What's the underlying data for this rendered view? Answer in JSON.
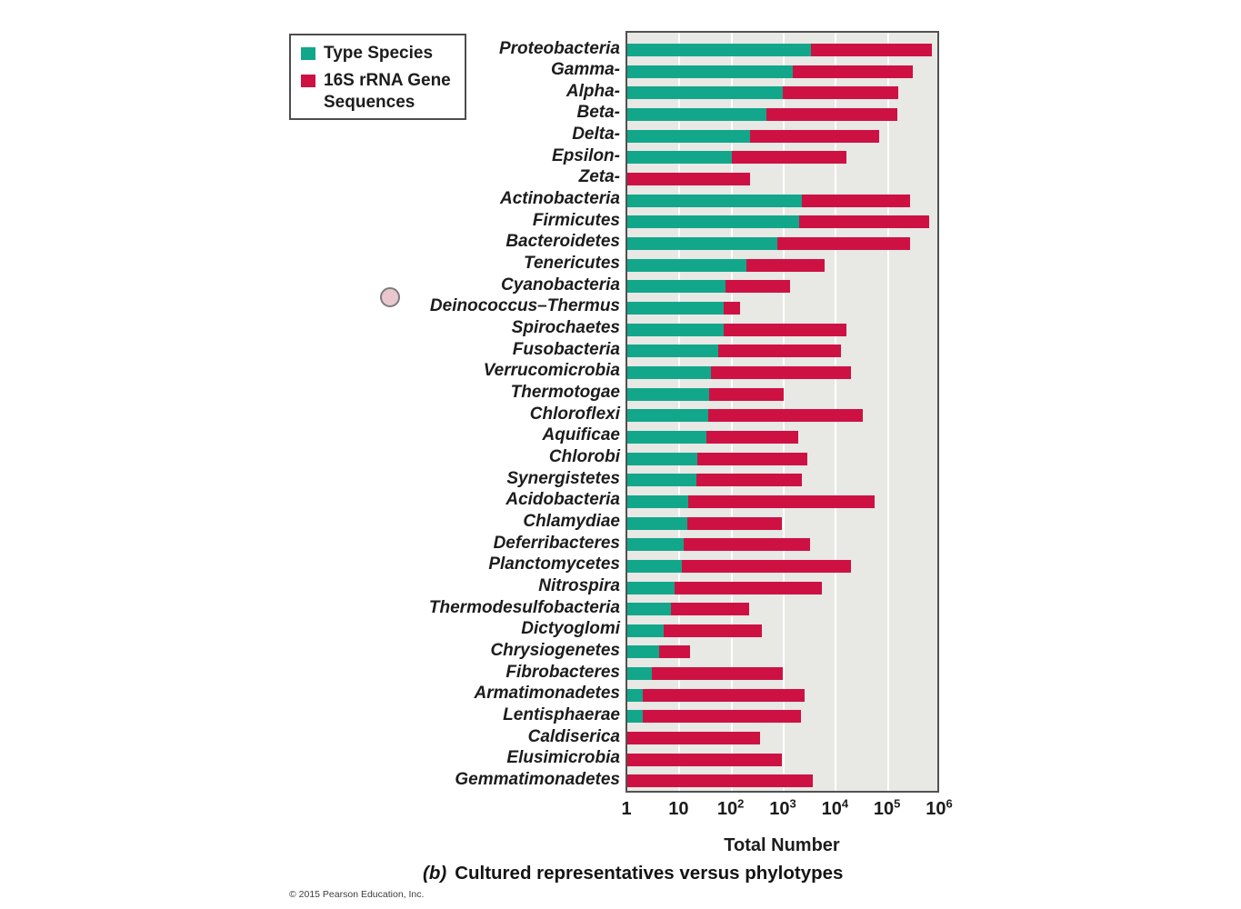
{
  "colors": {
    "type_species": "#12A78B",
    "gene_sequences": "#CE1143",
    "plot_background": "#E8E8E5",
    "plot_border": "#515151",
    "gridline": "#FFFFFF",
    "text": "#1C1C1C",
    "annotation_dot_fill": "#EAC6CE",
    "annotation_dot_border": "#7C7C7C"
  },
  "legend": {
    "items": [
      {
        "label": "Type Species",
        "color": "#12A78B"
      },
      {
        "label": "16S rRNA Gene Sequences",
        "color": "#CE1143"
      }
    ]
  },
  "chart_data": {
    "type": "bar",
    "orientation": "horizontal",
    "stacked": true,
    "x_scale": "log10",
    "xlim": [
      1,
      1000000
    ],
    "xlabel": "Total Number",
    "grid": "vertical-decade-gridlines",
    "legend_position": "outside-top-left",
    "x_ticks": [
      {
        "text": "1"
      },
      {
        "text": "10"
      },
      {
        "text": "10",
        "sup": "2"
      },
      {
        "text": "10",
        "sup": "3"
      },
      {
        "text": "10",
        "sup": "4"
      },
      {
        "text": "10",
        "sup": "5"
      },
      {
        "text": "10",
        "sup": "6"
      }
    ],
    "categories": [
      "Proteobacteria",
      "Gamma-",
      "Alpha-",
      "Beta-",
      "Delta-",
      "Epsilon-",
      "Zeta-",
      "Actinobacteria",
      "Firmicutes",
      "Bacteroidetes",
      "Tenericutes",
      "Cyanobacteria",
      "Deinococcus–Thermus",
      "Spirochaetes",
      "Fusobacteria",
      "Verrucomicrobia",
      "Thermotogae",
      "Chloroflexi",
      "Aquificae",
      "Chlorobi",
      "Synergistetes",
      "Acidobacteria",
      "Chlamydiae",
      "Deferribacteres",
      "Planctomycetes",
      "Nitrospira",
      "Thermodesulfobacteria",
      "Dictyoglomi",
      "Chrysiogenetes",
      "Fibrobacteres",
      "Armatimonadetes",
      "Lentisphaerae",
      "Caldiserica",
      "Elusimicrobia",
      "Gemmatimonadetes"
    ],
    "series": [
      {
        "name": "Type Species",
        "color": "#12A78B",
        "values": [
          3300,
          1500,
          950,
          470,
          230,
          100,
          1,
          2200,
          1950,
          760,
          190,
          78,
          72,
          72,
          55,
          41,
          37,
          36,
          33,
          22,
          21,
          15,
          14,
          12,
          11,
          8,
          7,
          5,
          4,
          3,
          2,
          2,
          1,
          1,
          1
        ]
      },
      {
        "name": "16S rRNA Gene Sequences",
        "color": "#CE1143",
        "bar_end_values": [
          700000,
          300000,
          160000,
          150000,
          68000,
          16000,
          230,
          270000,
          630000,
          270000,
          6100,
          1350,
          145,
          16000,
          12700,
          19500,
          990,
          33000,
          1900,
          2900,
          2200,
          55000,
          930,
          3200,
          19500,
          5300,
          220,
          380,
          16,
          950,
          2550,
          2150,
          350,
          930,
          3600
        ]
      }
    ]
  },
  "caption": {
    "index": "(b)",
    "title": "Cultured representatives versus phylotypes"
  },
  "footer": {
    "copyright": "© 2015 Pearson Education, Inc."
  }
}
